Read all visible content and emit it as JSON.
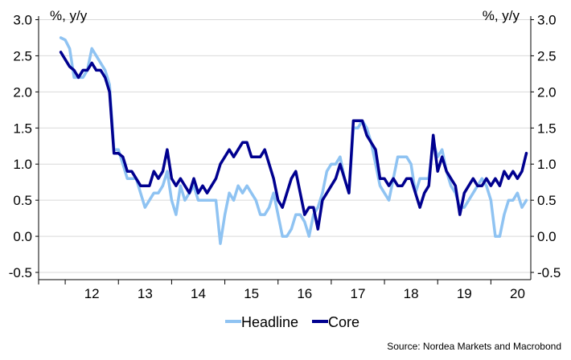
{
  "chart_data": {
    "type": "line",
    "ylim": [
      -0.6,
      3.05
    ],
    "y_ticks": [
      "3.0",
      "2.5",
      "2.0",
      "1.5",
      "1.0",
      "0.5",
      "0.0",
      "-0.5"
    ],
    "y_tick_values": [
      3.0,
      2.5,
      2.0,
      1.5,
      1.0,
      0.5,
      0.0,
      -0.5
    ],
    "y_unit_left": "%, y/y",
    "y_unit_right": "%, y/y",
    "x_ticks": [
      "12",
      "13",
      "14",
      "15",
      "16",
      "17",
      "18",
      "19",
      "20"
    ],
    "x_start": 2011.9167,
    "x_end": 2020.6667,
    "grid": "horizontal",
    "legend_placement": "bottom-center",
    "source": "Source: Nordea Markets and Macrobond",
    "series": [
      {
        "name": "Headline",
        "color": "#8fc3f2",
        "start": 2011.9167,
        "step": 0.08333,
        "values": [
          2.75,
          2.72,
          2.6,
          2.2,
          2.2,
          2.2,
          2.3,
          2.6,
          2.5,
          2.4,
          2.3,
          2.1,
          1.2,
          1.2,
          1.0,
          0.8,
          0.8,
          0.8,
          0.6,
          0.4,
          0.5,
          0.6,
          0.6,
          0.7,
          0.9,
          0.5,
          0.3,
          0.7,
          0.5,
          0.6,
          0.7,
          0.5,
          0.5,
          0.5,
          0.5,
          0.5,
          -0.1,
          0.3,
          0.6,
          0.5,
          0.7,
          0.6,
          0.7,
          0.6,
          0.5,
          0.3,
          0.3,
          0.4,
          0.6,
          0.3,
          0.0,
          0.0,
          0.1,
          0.3,
          0.3,
          0.2,
          0.0,
          0.3,
          0.4,
          0.6,
          0.9,
          1.0,
          1.0,
          1.1,
          0.8,
          0.6,
          1.5,
          1.5,
          1.6,
          1.5,
          1.3,
          1.0,
          0.7,
          0.6,
          0.5,
          0.8,
          1.1,
          1.1,
          1.1,
          1.0,
          0.6,
          0.8,
          0.8,
          0.8,
          1.3,
          1.1,
          1.2,
          0.9,
          0.7,
          0.6,
          0.4,
          0.4,
          0.5,
          0.6,
          0.7,
          0.8,
          0.7,
          0.5,
          0.0,
          0.0,
          0.3,
          0.5,
          0.5,
          0.6,
          0.4,
          0.5
        ]
      },
      {
        "name": "Core",
        "color": "#00008f",
        "start": 2011.9167,
        "step": 0.08333,
        "values": [
          2.55,
          2.45,
          2.35,
          2.3,
          2.2,
          2.3,
          2.3,
          2.4,
          2.3,
          2.3,
          2.2,
          2.0,
          1.15,
          1.15,
          1.1,
          0.9,
          0.9,
          0.8,
          0.7,
          0.7,
          0.7,
          0.9,
          0.8,
          0.9,
          1.2,
          0.8,
          0.7,
          0.8,
          0.7,
          0.6,
          0.8,
          0.6,
          0.7,
          0.6,
          0.7,
          0.8,
          1.0,
          1.1,
          1.2,
          1.1,
          1.2,
          1.3,
          1.3,
          1.1,
          1.1,
          1.1,
          1.2,
          1.0,
          0.8,
          0.5,
          0.4,
          0.6,
          0.8,
          0.9,
          0.6,
          0.3,
          0.4,
          0.4,
          0.1,
          0.5,
          0.6,
          0.7,
          0.8,
          1.0,
          0.8,
          0.6,
          1.6,
          1.6,
          1.6,
          1.4,
          1.3,
          1.2,
          0.8,
          0.8,
          0.7,
          0.8,
          0.7,
          0.7,
          0.8,
          0.8,
          0.6,
          0.4,
          0.6,
          0.7,
          1.4,
          0.9,
          1.1,
          0.9,
          0.8,
          0.7,
          0.3,
          0.6,
          0.7,
          0.8,
          0.7,
          0.7,
          0.8,
          0.7,
          0.8,
          0.7,
          0.9,
          0.8,
          0.9,
          0.8,
          0.9,
          1.15
        ]
      }
    ]
  }
}
